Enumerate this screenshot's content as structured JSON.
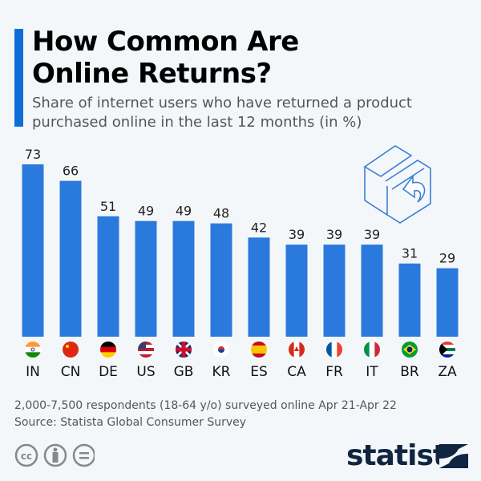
{
  "header": {
    "title": "How Common Are Online Returns?",
    "subtitle": "Share of internet users who have returned a product purchased online in the last 12 months (in %)"
  },
  "chart_data": {
    "type": "bar",
    "title": "How Common Are Online Returns?",
    "subtitle": "Share of internet users who have returned a product purchased online in the last 12 months (in %)",
    "categories": [
      "IN",
      "CN",
      "DE",
      "US",
      "GB",
      "KR",
      "ES",
      "CA",
      "FR",
      "IT",
      "BR",
      "ZA"
    ],
    "values": [
      73,
      66,
      51,
      49,
      49,
      48,
      42,
      39,
      39,
      39,
      31,
      29
    ],
    "ylim": [
      0,
      73
    ],
    "grid": false,
    "bar_color": "#2a7ade",
    "data_labels": true,
    "category_icons": "country-flags"
  },
  "footer": {
    "note": "2,000-7,500 respondents (18-64 y/o) surveyed online Apr 21-Apr 22",
    "source": "Source: Statista Global Consumer Survey",
    "brand": "statista",
    "license_icons": [
      "cc-icon",
      "attribution-icon",
      "no-derivatives-icon"
    ]
  },
  "colors": {
    "accent": "#0d6fd6",
    "bar": "#2a7ade",
    "brand": "#0f2540"
  }
}
